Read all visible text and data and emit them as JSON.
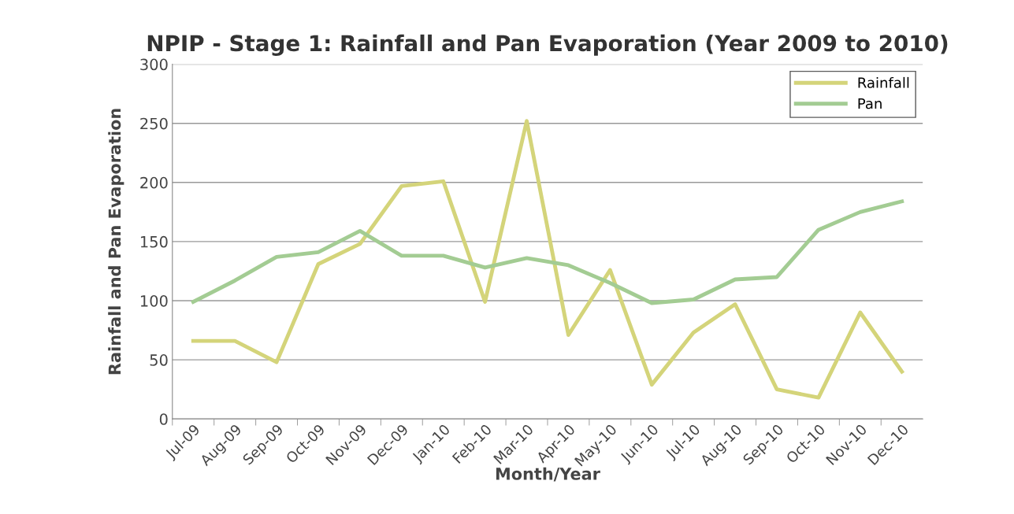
{
  "chart_data": {
    "type": "line",
    "title": "NPIP - Stage 1: Rainfall and Pan Evaporation (Year 2009 to 2010)",
    "xlabel": "Month/Year",
    "ylabel": "Rainfall and Pan Evaporation",
    "categories": [
      "Jul-09",
      "Aug-09",
      "Sep-09",
      "Oct-09",
      "Nov-09",
      "Dec-09",
      "Jan-10",
      "Feb-10",
      "Mar-10",
      "Apr-10",
      "May-10",
      "Jun-10",
      "Jul-10",
      "Aug-10",
      "Sep-10",
      "Oct-10",
      "Nov-10",
      "Dec-10"
    ],
    "series": [
      {
        "name": "Rainfall",
        "color": "#d4d47a",
        "values": [
          66,
          66,
          48,
          131,
          148,
          197,
          201,
          99,
          252,
          71,
          126,
          29,
          73,
          97,
          25,
          18,
          90,
          40
        ]
      },
      {
        "name": "Pan",
        "color": "#a3cc93",
        "values": [
          99,
          117,
          137,
          141,
          159,
          138,
          138,
          128,
          136,
          130,
          115,
          98,
          101,
          118,
          120,
          160,
          175,
          184
        ]
      }
    ],
    "ylim": [
      0,
      300
    ],
    "yticks": [
      0,
      50,
      100,
      150,
      200,
      250,
      300
    ],
    "grid": "y",
    "legend": "top right",
    "marker": "none",
    "line_style": "solid"
  }
}
